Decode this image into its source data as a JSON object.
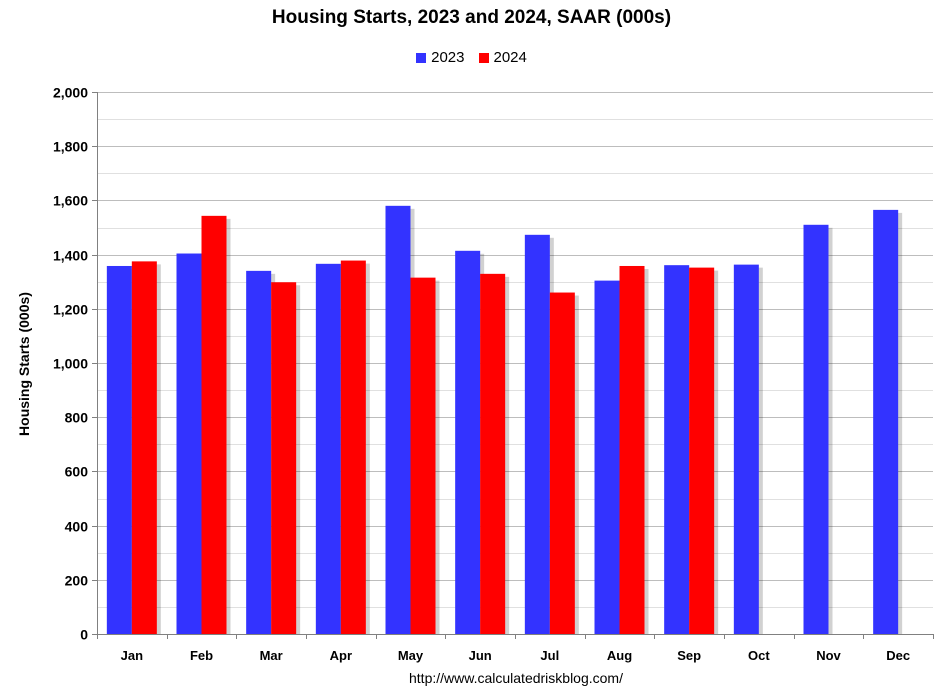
{
  "colors": {
    "series_2023": "#3333ff",
    "series_2024": "#ff0000",
    "grid_major": "#bdbdbd",
    "grid_minor": "#e0e0e0",
    "plot_background": "#ffffff"
  },
  "source_text": "http://www.calculatedriskblog.com/",
  "chart_data": {
    "type": "bar",
    "title": "Housing Starts,  2023 and 2024, SAAR (000s)",
    "xlabel": "",
    "ylabel": "Housing Starts (000s)",
    "ylim": [
      0,
      2000
    ],
    "y_ticks": [
      0,
      200,
      400,
      600,
      800,
      1000,
      1200,
      1400,
      1600,
      1800,
      2000
    ],
    "y_tick_labels": [
      "0",
      "200",
      "400",
      "600",
      "800",
      "1,000",
      "1,200",
      "1,400",
      "1,600",
      "1,800",
      "2,000"
    ],
    "grid": true,
    "legend_position": "top-center",
    "categories": [
      "Jan",
      "Feb",
      "Mar",
      "Apr",
      "May",
      "Jun",
      "Jul",
      "Aug",
      "Sep",
      "Oct",
      "Nov",
      "Dec"
    ],
    "series": [
      {
        "name": "2023",
        "color": "#3333ff",
        "values": [
          1358,
          1404,
          1340,
          1366,
          1580,
          1414,
          1473,
          1304,
          1361,
          1363,
          1510,
          1565
        ]
      },
      {
        "name": "2024",
        "color": "#ff0000",
        "values": [
          1375,
          1543,
          1298,
          1378,
          1315,
          1329,
          1260,
          1358,
          1352,
          null,
          null,
          null
        ]
      }
    ]
  }
}
